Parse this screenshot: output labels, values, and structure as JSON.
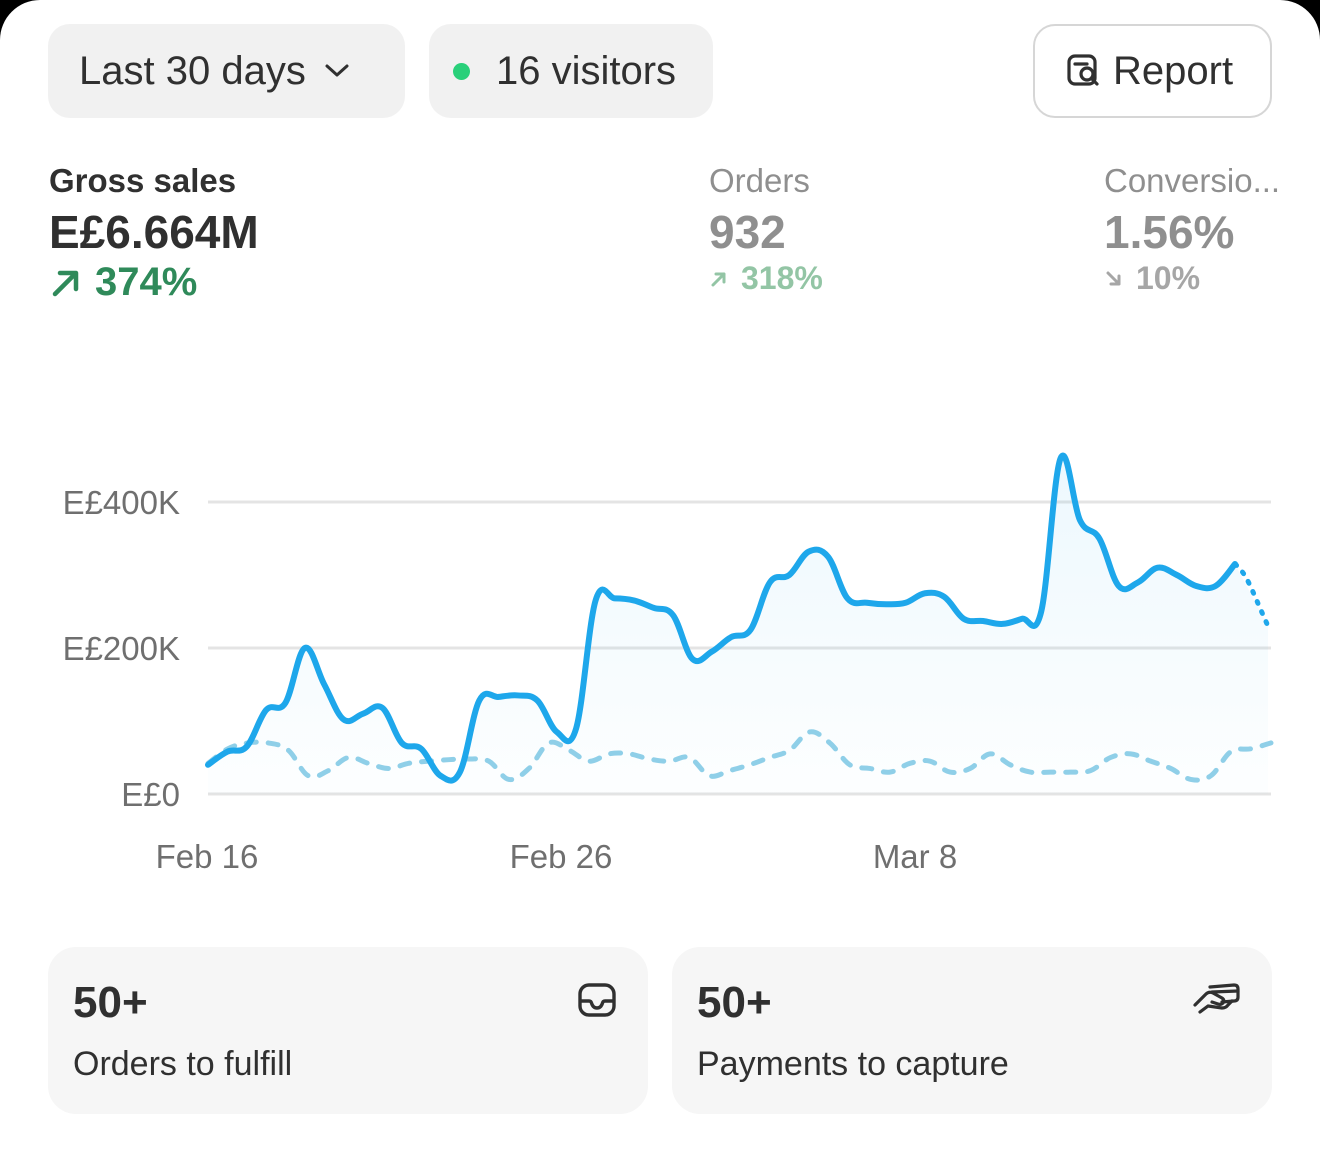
{
  "filters": {
    "date_range_label": "Last 30 days",
    "visitors_label": "16 visitors",
    "live_dot_color": "#29d07a"
  },
  "report_button": {
    "label": "Report",
    "icon": "report-icon"
  },
  "metrics": {
    "gross_sales": {
      "label": "Gross sales",
      "value": "E£6.664M",
      "delta": "374%",
      "direction": "up"
    },
    "orders": {
      "label": "Orders",
      "value": "932",
      "delta": "318%",
      "direction": "up"
    },
    "conversion": {
      "label": "Conversio...",
      "value": "1.56%",
      "delta": "10%",
      "direction": "down"
    }
  },
  "chart_data": {
    "type": "line",
    "title": "",
    "xlabel": "",
    "ylabel": "",
    "y_ticks": [
      "E£0",
      "E£200K",
      "E£400K"
    ],
    "y_tick_values": [
      0,
      200000,
      400000
    ],
    "x_ticks": [
      "Feb 16",
      "Feb 26",
      "Mar 8"
    ],
    "x_tick_positions": [
      0,
      10,
      20
    ],
    "ylim": [
      0,
      480000
    ],
    "grid": true,
    "legend": false,
    "series": [
      {
        "style": "solid",
        "color": "#1ea7eb",
        "values": [
          40000,
          58000,
          65000,
          115000,
          125000,
          200000,
          150000,
          102000,
          110000,
          118000,
          70000,
          62000,
          25000,
          30000,
          128000,
          133000,
          135000,
          128000,
          85000,
          90000,
          265000,
          268000,
          265000,
          255000,
          245000,
          185000,
          195000,
          215000,
          225000,
          290000,
          300000,
          332000,
          325000,
          268000,
          262000,
          260000,
          262000,
          275000,
          270000,
          240000,
          237000,
          233000,
          240000,
          250000,
          460000,
          375000,
          350000,
          285000,
          290000,
          310000,
          300000,
          285000,
          285000,
          315000
        ],
        "projected_tail": [
          315000,
          230000
        ]
      },
      {
        "style": "dashed",
        "color": "#8fcfe8",
        "values": [
          42000,
          62000,
          70000,
          70000,
          60000,
          25000,
          32000,
          50000,
          42000,
          35000,
          42000,
          45000,
          47000,
          48000,
          45000,
          20000,
          35000,
          70000,
          60000,
          45000,
          55000,
          55000,
          48000,
          45000,
          50000,
          25000,
          32000,
          40000,
          50000,
          60000,
          85000,
          70000,
          40000,
          35000,
          30000,
          42000,
          45000,
          30000,
          35000,
          55000,
          40000,
          30000,
          30000,
          30000,
          32000,
          50000,
          55000,
          45000,
          35000,
          20000,
          25000,
          58000,
          62000,
          70000
        ]
      }
    ]
  },
  "tiles": [
    {
      "count": "50+",
      "label": "Orders to fulfill",
      "icon": "inbox-icon"
    },
    {
      "count": "50+",
      "label": "Payments to capture",
      "icon": "hand-card-icon"
    }
  ]
}
